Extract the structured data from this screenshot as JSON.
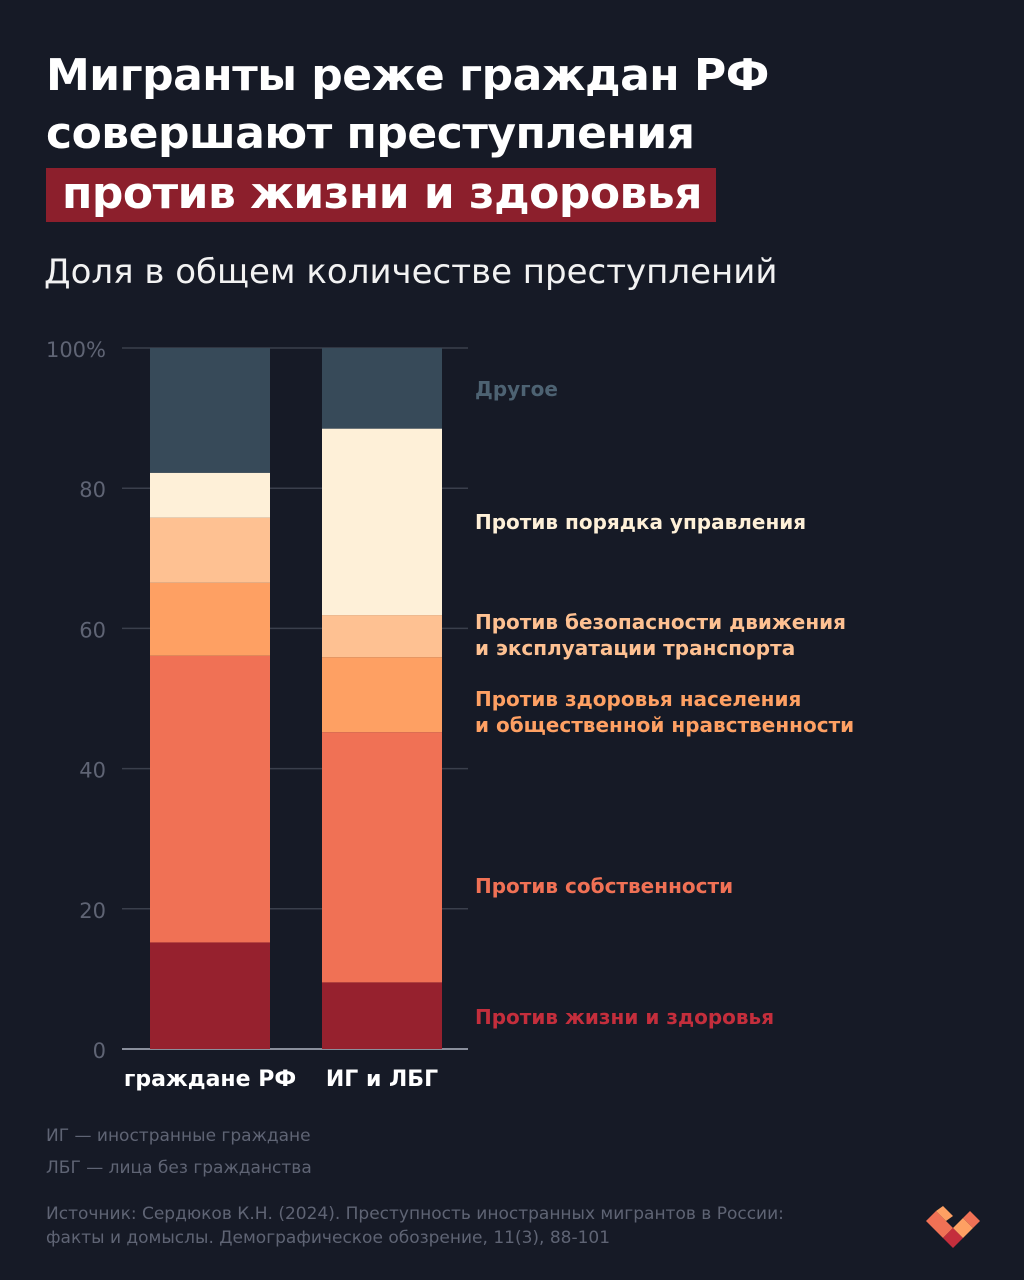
{
  "title": {
    "line1": "Мигранты реже граждан РФ",
    "line2": "совершают преступления",
    "line3": "против жизни и здоровья"
  },
  "subtitle": "Доля в общем количестве преступлений",
  "colors": {
    "background": "#161a26",
    "highlight": "#8c1f2c",
    "life_health": "#96212e",
    "property": "#f07155",
    "health_morality": "#fea063",
    "traffic": "#fec192",
    "governance": "#fef0d8",
    "other": "#374a59"
  },
  "chart_data": {
    "type": "bar",
    "stacked": true,
    "title": "Доля в общем количестве преступлений",
    "categories": [
      "граждане РФ",
      "ИГ и ЛБГ"
    ],
    "ylim": [
      0,
      100
    ],
    "yticks": [
      "0",
      "20",
      "40",
      "60",
      "80",
      "100%"
    ],
    "ytick_values": [
      0,
      20,
      40,
      60,
      80,
      100
    ],
    "grid": true,
    "series": [
      {
        "name": "Против жизни и здоровья",
        "color": "#96212e",
        "values": [
          15.2,
          9.5
        ]
      },
      {
        "name": "Против собственности",
        "color": "#f07155",
        "values": [
          40.9,
          35.7
        ]
      },
      {
        "name": "Против здоровья населения и общественной нравственности",
        "color": "#fea063",
        "values": [
          10.4,
          10.7
        ]
      },
      {
        "name": "Против безопасности движения и эксплуатации транспорта",
        "color": "#fec192",
        "values": [
          9.3,
          6.0
        ]
      },
      {
        "name": "Против порядка управления",
        "color": "#fef0d8",
        "values": [
          6.4,
          26.6
        ]
      },
      {
        "name": "Другое",
        "color": "#374a59",
        "values": [
          17.8,
          11.5
        ]
      }
    ]
  },
  "legend": {
    "other": "Другое",
    "governance": "Против порядка управления",
    "traffic_l1": "Против безопасности движения",
    "traffic_l2": "и эксплуатации транспорта",
    "health_l1": "Против здоровья населения",
    "health_l2": "и общественной нравственности",
    "property": "Против собственности",
    "life": "Против жизни и здоровья"
  },
  "footnotes": {
    "ig": "ИГ — иностранные граждане",
    "lbg": "ЛБГ — лица без гражданства"
  },
  "source": {
    "line1": "Источник: Сердюков К.Н. (2024). Преступность иностранных мигрантов в России:",
    "line2": "факты и домыслы. Демографическое обозрение, 11(3), 88-101"
  },
  "logo": "logo-icon"
}
